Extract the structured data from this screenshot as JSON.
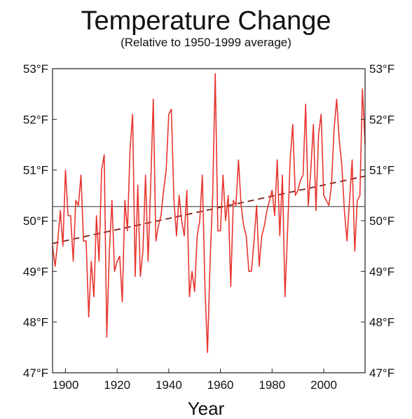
{
  "chart_data": {
    "type": "line",
    "title": "Temperature Change",
    "subtitle": "(Relative to 1950-1999 average)",
    "xlabel": "Year",
    "ylabel": "",
    "xlim": [
      1895,
      2016
    ],
    "ylim": [
      47,
      53
    ],
    "x_ticks": [
      1900,
      1920,
      1940,
      1960,
      1980,
      2000
    ],
    "x_tick_labels": [
      "1900",
      "1920",
      "1940",
      "1960",
      "1980",
      "2000"
    ],
    "y_ticks": [
      47,
      48,
      49,
      50,
      51,
      52,
      53
    ],
    "y_tick_labels": [
      "47°F",
      "48°F",
      "49°F",
      "50°F",
      "51°F",
      "52°F",
      "53°F"
    ],
    "grid": false,
    "colors": {
      "series": "#e8352f",
      "trend": "#7a1f12",
      "average": "#555555",
      "axes": "#222222"
    },
    "series": [
      {
        "x": [
          1895,
          1896,
          1897,
          1898,
          1899,
          1900,
          1901,
          1902,
          1903,
          1904,
          1905,
          1906,
          1907,
          1908,
          1909,
          1910,
          1911,
          1912,
          1913,
          1914,
          1915,
          1916,
          1917,
          1918,
          1919,
          1920,
          1921,
          1922,
          1923,
          1924,
          1925,
          1926,
          1927,
          1928,
          1929,
          1930,
          1931,
          1932,
          1933,
          1934,
          1935,
          1936,
          1937,
          1938,
          1939,
          1940,
          1941,
          1942,
          1943,
          1944,
          1945,
          1946,
          1947,
          1948,
          1949,
          1950,
          1951,
          1952,
          1953,
          1954,
          1955,
          1956,
          1957,
          1958,
          1959,
          1960,
          1961,
          1962,
          1963,
          1964,
          1965,
          1966,
          1967,
          1968,
          1969,
          1970,
          1971,
          1972,
          1973,
          1974,
          1975,
          1976,
          1977,
          1978,
          1979,
          1980,
          1981,
          1982,
          1983,
          1984,
          1985,
          1986,
          1987,
          1988,
          1989,
          1990,
          1991,
          1992,
          1993,
          1994,
          1995,
          1996,
          1997,
          1998,
          1999,
          2000,
          2001,
          2002,
          2003,
          2004,
          2005,
          2006,
          2007,
          2008,
          2009,
          2010,
          2011,
          2012,
          2013,
          2014,
          2015,
          2016
        ],
        "values": [
          49.5,
          49.1,
          49.6,
          50.2,
          49.5,
          51.0,
          50.1,
          50.1,
          49.2,
          50.4,
          50.3,
          50.9,
          49.6,
          49.6,
          48.1,
          49.2,
          48.5,
          50.1,
          49.2,
          51.0,
          51.3,
          47.7,
          49.4,
          50.4,
          49.0,
          49.2,
          49.3,
          48.4,
          50.4,
          49.8,
          51.4,
          52.1,
          48.9,
          50.7,
          48.9,
          49.4,
          50.9,
          49.2,
          50.7,
          52.4,
          49.6,
          49.9,
          50.1,
          50.6,
          51.0,
          52.1,
          52.2,
          50.4,
          49.7,
          50.5,
          50.0,
          49.7,
          50.6,
          48.5,
          49.0,
          48.6,
          49.7,
          50.0,
          50.9,
          48.7,
          47.4,
          49.2,
          50.5,
          52.9,
          49.8,
          49.8,
          50.9,
          50.0,
          50.5,
          48.7,
          50.4,
          50.3,
          51.2,
          50.3,
          49.9,
          49.7,
          49.0,
          49.0,
          49.6,
          50.3,
          49.1,
          49.7,
          49.9,
          50.2,
          50.4,
          50.6,
          50.1,
          51.2,
          49.7,
          50.9,
          48.5,
          49.8,
          51.2,
          51.9,
          50.5,
          50.6,
          50.8,
          50.9,
          52.3,
          50.3,
          51.0,
          51.9,
          50.2,
          51.7,
          52.1,
          50.5,
          50.4,
          50.3,
          50.7,
          51.8,
          52.4,
          51.6,
          51.1,
          50.2,
          49.6,
          50.4,
          51.2,
          49.4,
          50.4,
          50.5,
          52.6,
          51.5
        ]
      }
    ],
    "trend_line": {
      "x": [
        1895,
        2016
      ],
      "y": [
        49.55,
        50.88
      ],
      "style": "dashed"
    },
    "average_line": {
      "y": 50.28
    }
  }
}
